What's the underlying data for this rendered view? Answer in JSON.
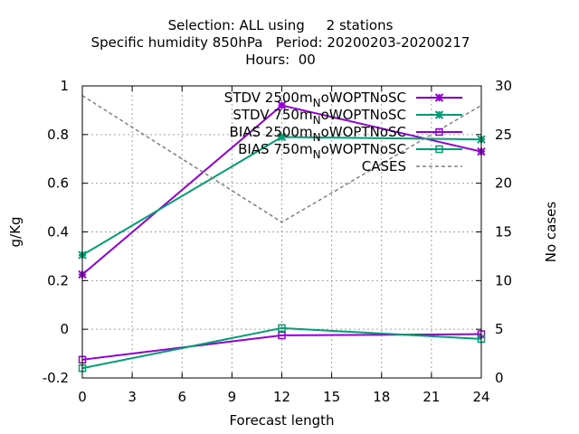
{
  "chart_data": {
    "type": "line",
    "title_lines": [
      "Selection: ALL using     2 stations",
      "Specific humidity 850hPa   Period: 20200203-20200217",
      "Hours:  00"
    ],
    "xlabel": "Forecast length",
    "ylabel": "g/Kg",
    "y2label": "No cases",
    "xlim": [
      0,
      24
    ],
    "ylim": [
      -0.2,
      1
    ],
    "y2lim": [
      0,
      30
    ],
    "xticks": [
      "0",
      "3",
      "6",
      "9",
      "12",
      "15",
      "18",
      "21",
      "24"
    ],
    "yticks": [
      "-0.2",
      "0",
      "0.2",
      "0.4",
      "0.6",
      "0.8",
      "1"
    ],
    "y2ticks": [
      "0",
      "5",
      "10",
      "15",
      "20",
      "25",
      "30"
    ],
    "grid": true,
    "legend_position": "top-right",
    "x": [
      0,
      12,
      24
    ],
    "series": [
      {
        "name": "STDV 2500m_NoWOPTNoSC",
        "name_parts": [
          "STDV 2500m",
          "N",
          "oWOPTNoSC"
        ],
        "axis": "y",
        "color": "#9400d3",
        "marker": "star",
        "values": [
          0.225,
          0.92,
          0.73
        ]
      },
      {
        "name": "STDV 750m_NoWOPTNoSC",
        "name_parts": [
          "STDV 750m",
          "N",
          "oWOPTNoSC"
        ],
        "axis": "y",
        "color": "#009e73",
        "marker": "star",
        "values": [
          0.305,
          0.79,
          0.78
        ]
      },
      {
        "name": "BIAS 2500m_NoWOPTNoSC",
        "name_parts": [
          "BIAS 2500m",
          "N",
          "oWOPTNoSC"
        ],
        "axis": "y",
        "color": "#9400d3",
        "marker": "square",
        "values": [
          -0.125,
          -0.025,
          -0.02
        ]
      },
      {
        "name": "BIAS 750m_NoWOPTNoSC",
        "name_parts": [
          "BIAS 750m",
          "N",
          "oWOPTNoSC"
        ],
        "axis": "y",
        "color": "#009e73",
        "marker": "square",
        "values": [
          -0.16,
          0.005,
          -0.04
        ]
      },
      {
        "name": "CASES",
        "name_parts": [
          "CASES"
        ],
        "axis": "y2",
        "color": "#808080",
        "marker": "none",
        "dashed": true,
        "values": [
          29,
          16,
          28
        ]
      }
    ]
  }
}
